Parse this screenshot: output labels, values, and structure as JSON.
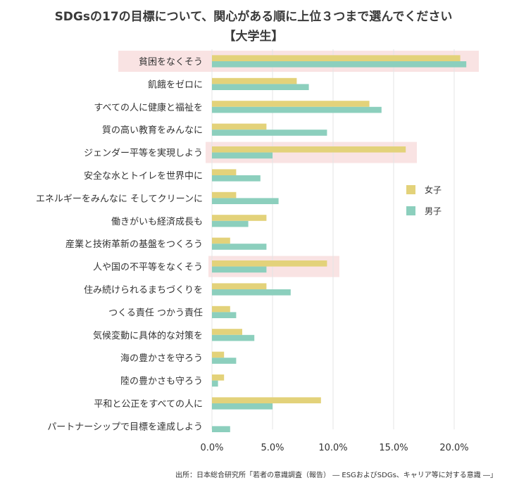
{
  "title": "SDGsの17の目標について、関心がある順に上位３つまで選んでください",
  "subtitle": "【大学生】",
  "source": "出所：日本総合研究所「若者の意識調査（報告） ― ESGおよびSDGs、キャリア等に対する意識 ―」",
  "chart_data": {
    "type": "bar",
    "orientation": "horizontal",
    "categories": [
      "貧困をなくそう",
      "飢餓をゼロに",
      "すべての人に健康と福祉を",
      "質の高い教育をみんなに",
      "ジェンダー平等を実現しよう",
      "安全な水とトイレを世界中に",
      "エネルギーをみんなに そしてクリーンに",
      "働きがいも経済成長も",
      "産業と技術革新の基盤をつくろう",
      "人や国の不平等をなくそう",
      "住み続けられるまちづくりを",
      "つくる責任 つかう責任",
      "気候変動に具体的な対策を",
      "海の豊かさを守ろう",
      "陸の豊かさも守ろう",
      "平和と公正をすべての人に",
      "パートナーシップで目標を達成しよう"
    ],
    "series": [
      {
        "name": "女子",
        "color": "#e3d27a",
        "values": [
          20.5,
          7.0,
          13.0,
          4.5,
          16.0,
          2.0,
          2.0,
          4.5,
          1.5,
          9.5,
          4.5,
          1.5,
          2.5,
          1.0,
          1.0,
          9.0,
          0.0
        ]
      },
      {
        "name": "男子",
        "color": "#8ccfbd",
        "values": [
          21.0,
          8.0,
          14.0,
          9.5,
          5.0,
          4.0,
          5.5,
          3.0,
          4.5,
          4.5,
          6.5,
          2.0,
          3.5,
          2.0,
          0.5,
          5.0,
          1.5
        ]
      }
    ],
    "highlighted_categories": [
      "貧困をなくそう",
      "ジェンダー平等を実現しよう",
      "人や国の不平等をなくそう"
    ],
    "highlight_color": "#f9e3e3",
    "xlim": [
      0,
      22
    ],
    "xticks": [
      0,
      5,
      10,
      15,
      20
    ],
    "xtick_labels": [
      "0.0%",
      "5.0%",
      "10.0%",
      "15.0%",
      "20.0%"
    ],
    "grid": "vertical",
    "legend_position": "right"
  }
}
